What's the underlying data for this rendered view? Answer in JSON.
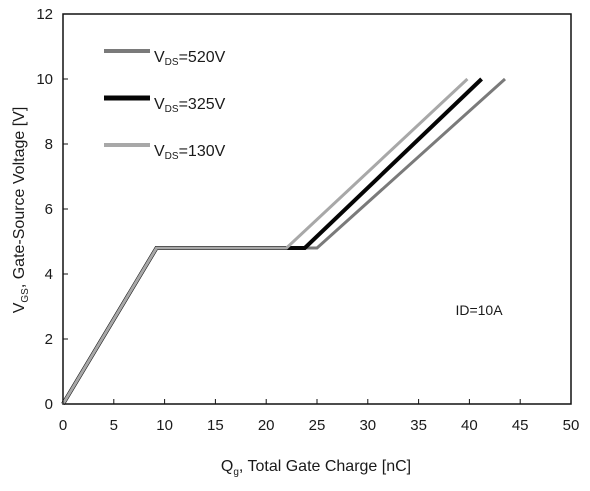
{
  "chart_data": {
    "type": "line",
    "title": "",
    "xlabel": {
      "main": "Q",
      "sub": "g",
      "rest": ", Total Gate Charge [nC]"
    },
    "ylabel": {
      "main": "V",
      "sub": "GS",
      "rest": ", Gate-Source Voltage [V]"
    },
    "xlim": [
      0,
      50
    ],
    "ylim": [
      0,
      12
    ],
    "xticks": [
      0,
      5,
      10,
      15,
      20,
      25,
      30,
      35,
      40,
      45,
      50
    ],
    "yticks": [
      0,
      2,
      4,
      6,
      8,
      10,
      12
    ],
    "grid": false,
    "legend_position": "top-left",
    "annotation": "ID=10A",
    "series": [
      {
        "name_main": "V",
        "name_sub": "DS",
        "name_rest": "=520V",
        "color": "#7a7a7a",
        "width": 3,
        "points": [
          [
            0,
            0
          ],
          [
            9.2,
            4.8
          ],
          [
            25.0,
            4.8
          ],
          [
            43.5,
            10.0
          ]
        ]
      },
      {
        "name_main": "V",
        "name_sub": "DS",
        "name_rest": "=325V",
        "color": "#050505",
        "width": 4,
        "points": [
          [
            0,
            0
          ],
          [
            9.2,
            4.8
          ],
          [
            23.8,
            4.8
          ],
          [
            41.2,
            10.0
          ]
        ]
      },
      {
        "name_main": "V",
        "name_sub": "DS",
        "name_rest": "=130V",
        "color": "#a8a8a8",
        "width": 3,
        "points": [
          [
            0,
            0
          ],
          [
            9.2,
            4.8
          ],
          [
            22.0,
            4.8
          ],
          [
            39.8,
            10.0
          ]
        ]
      }
    ]
  }
}
